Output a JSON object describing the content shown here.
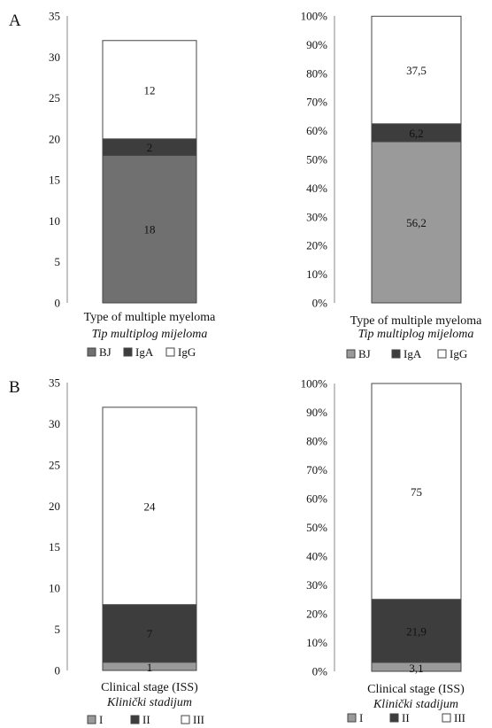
{
  "figure": {
    "panel_letters": [
      "A",
      "B"
    ]
  },
  "chart_data": [
    {
      "type": "bar",
      "stacked": true,
      "panel": "A",
      "title": "",
      "xlabel": "Type of multiple myeloma",
      "xlabel_secondary": "Tip multiplog mijeloma",
      "ylabel": "",
      "ylim": [
        0,
        35
      ],
      "yticks": [
        0,
        5,
        10,
        15,
        20,
        25,
        30,
        35
      ],
      "ytick_labels": [
        "0",
        "5",
        "10",
        "15",
        "20",
        "25",
        "30",
        "35"
      ],
      "legend_position": "bottom",
      "grid": false,
      "series": [
        {
          "name": "BJ",
          "value": 18,
          "label": "18",
          "color": "#707070"
        },
        {
          "name": "IgA",
          "value": 2,
          "label": "2",
          "color": "#3d3d3d"
        },
        {
          "name": "IgG",
          "value": 12,
          "label": "12",
          "color": "#ffffff"
        }
      ]
    },
    {
      "type": "bar",
      "stacked": true,
      "panel": "A",
      "title": "",
      "xlabel": "Type of multiple myeloma",
      "xlabel_secondary": "Tip multiplog mijeloma",
      "ylabel": "",
      "ylim": [
        0,
        100
      ],
      "yticks": [
        0,
        10,
        20,
        30,
        40,
        50,
        60,
        70,
        80,
        90,
        100
      ],
      "ytick_labels": [
        "0%",
        "10%",
        "20%",
        "30%",
        "40%",
        "50%",
        "60%",
        "70%",
        "80%",
        "90%",
        "100%"
      ],
      "legend_position": "bottom",
      "grid": false,
      "series": [
        {
          "name": "BJ",
          "value": 56.2,
          "label": "56,2",
          "color": "#9a9a9a"
        },
        {
          "name": "IgA",
          "value": 6.2,
          "label": "6,2",
          "color": "#3d3d3d"
        },
        {
          "name": "IgG",
          "value": 37.5,
          "label": "37,5",
          "color": "#ffffff"
        }
      ]
    },
    {
      "type": "bar",
      "stacked": true,
      "panel": "B",
      "title": "",
      "xlabel": "Clinical stage (ISS)",
      "xlabel_secondary": "Klinički stadijum",
      "ylabel": "",
      "ylim": [
        0,
        35
      ],
      "yticks": [
        0,
        5,
        10,
        15,
        20,
        25,
        30,
        35
      ],
      "ytick_labels": [
        "0",
        "5",
        "10",
        "15",
        "20",
        "25",
        "30",
        "35"
      ],
      "legend_position": "bottom",
      "grid": false,
      "series": [
        {
          "name": "I",
          "value": 1,
          "label": "1",
          "color": "#9a9a9a"
        },
        {
          "name": "II",
          "value": 7,
          "label": "7",
          "color": "#3d3d3d"
        },
        {
          "name": "III",
          "value": 24,
          "label": "24",
          "color": "#ffffff"
        }
      ]
    },
    {
      "type": "bar",
      "stacked": true,
      "panel": "B",
      "title": "",
      "xlabel": "Clinical stage (ISS)",
      "xlabel_secondary": "Klinički stadijum",
      "ylabel": "",
      "ylim": [
        0,
        100
      ],
      "yticks": [
        0,
        10,
        20,
        30,
        40,
        50,
        60,
        70,
        80,
        90,
        100
      ],
      "ytick_labels": [
        "0%",
        "10%",
        "20%",
        "30%",
        "40%",
        "50%",
        "60%",
        "70%",
        "80%",
        "90%",
        "100%"
      ],
      "legend_position": "bottom",
      "grid": false,
      "series": [
        {
          "name": "I",
          "value": 3.1,
          "label": "3,1",
          "color": "#9a9a9a"
        },
        {
          "name": "II",
          "value": 21.9,
          "label": "21,9",
          "color": "#3d3d3d"
        },
        {
          "name": "III",
          "value": 75,
          "label": "75",
          "color": "#ffffff"
        }
      ]
    }
  ]
}
